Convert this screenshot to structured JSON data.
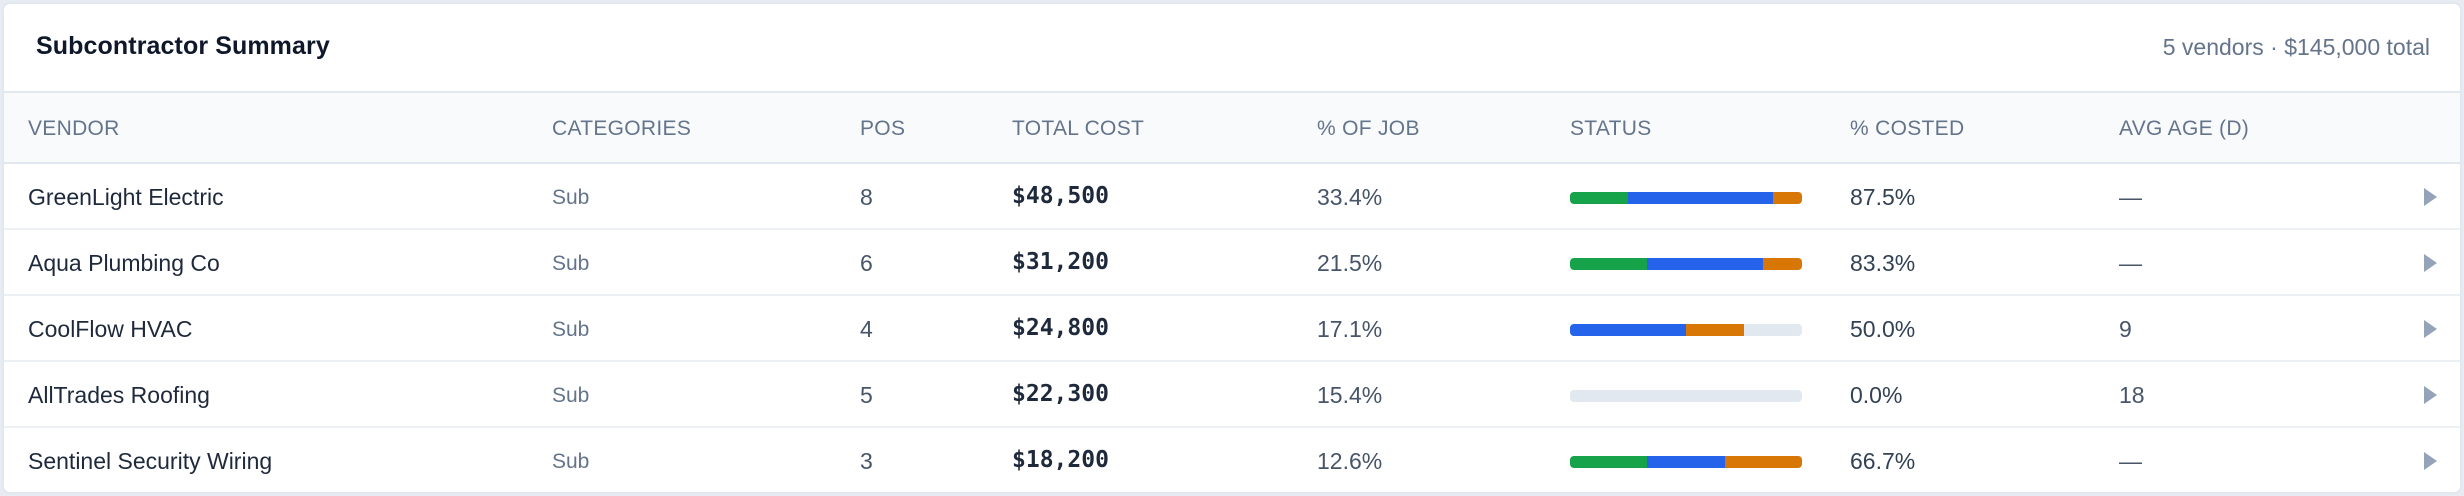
{
  "header": {
    "title": "Subcontractor Summary",
    "summary": "5 vendors · $145,000 total"
  },
  "columns": {
    "vendor": "VENDOR",
    "categories": "CATEGORIES",
    "pos": "POS",
    "total_cost": "TOTAL COST",
    "pct_of_job": "% OF JOB",
    "status": "STATUS",
    "pct_costed": "% COSTED",
    "avg_age": "AVG AGE (D)"
  },
  "status_colors": {
    "green": "#16a34a",
    "blue": "#2563eb",
    "orange": "#d97706",
    "track": "#e2e8f0"
  },
  "rows": [
    {
      "vendor": "GreenLight Electric",
      "category": "Sub",
      "pos": "8",
      "total_cost": "$48,500",
      "pct_of_job": "33.4%",
      "status": {
        "green": 25,
        "blue": 62.5,
        "orange": 12.5
      },
      "pct_costed": "87.5%",
      "avg_age": "—"
    },
    {
      "vendor": "Aqua Plumbing Co",
      "category": "Sub",
      "pos": "6",
      "total_cost": "$31,200",
      "pct_of_job": "21.5%",
      "status": {
        "green": 33.33,
        "blue": 50,
        "orange": 16.67
      },
      "pct_costed": "83.3%",
      "avg_age": "—"
    },
    {
      "vendor": "CoolFlow HVAC",
      "category": "Sub",
      "pos": "4",
      "total_cost": "$24,800",
      "pct_of_job": "17.1%",
      "status": {
        "green": 0,
        "blue": 50,
        "orange": 25
      },
      "pct_costed": "50.0%",
      "avg_age": "9"
    },
    {
      "vendor": "AllTrades Roofing",
      "category": "Sub",
      "pos": "5",
      "total_cost": "$22,300",
      "pct_of_job": "15.4%",
      "status": {
        "green": 0,
        "blue": 0,
        "orange": 0
      },
      "pct_costed": "0.0%",
      "avg_age": "18"
    },
    {
      "vendor": "Sentinel Security Wiring",
      "category": "Sub",
      "pos": "3",
      "total_cost": "$18,200",
      "pct_of_job": "12.6%",
      "status": {
        "green": 33.33,
        "blue": 33.33,
        "orange": 33.34
      },
      "pct_costed": "66.7%",
      "avg_age": "—"
    }
  ],
  "row_action_icon": "chevron-right-icon"
}
